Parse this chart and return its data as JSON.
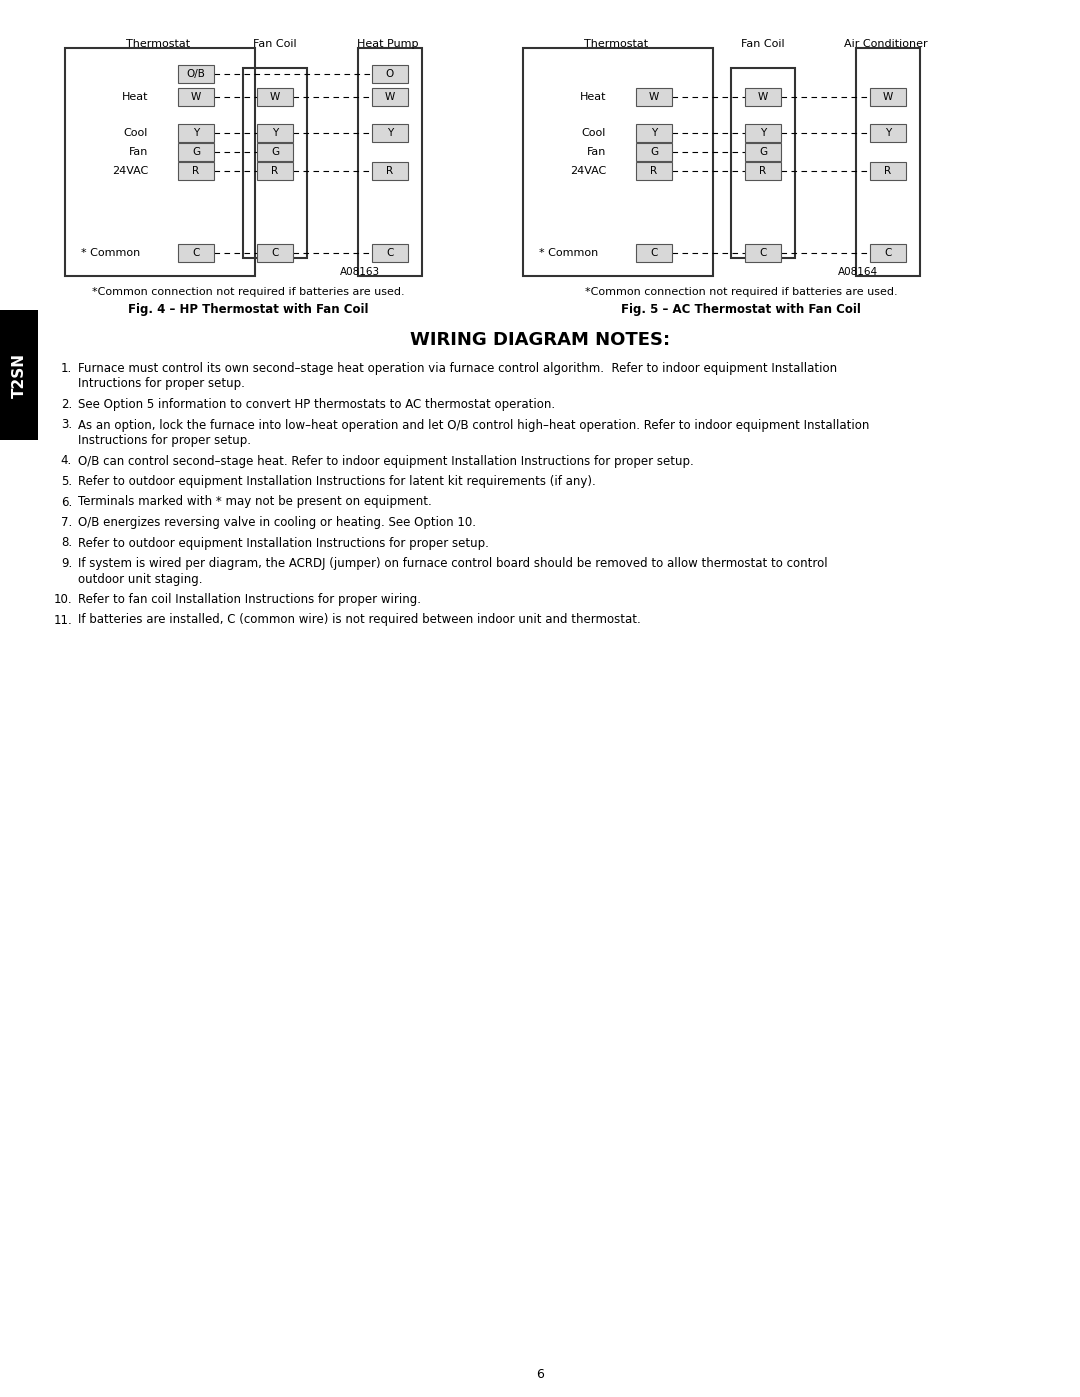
{
  "page_bg": "#ffffff",
  "fig4_title": "Thermostat",
  "fig4_fancoil_title": "Fan Coil",
  "fig4_heatpump_title": "Heat Pump",
  "fig4_caption_note": "*Common connection not required if batteries are used.",
  "fig4_caption_bold": "Fig. 4 – HP Thermostat with Fan Coil",
  "fig4_code": "A08163",
  "fig5_title": "Thermostat",
  "fig5_fancoil_title": "Fan Coil",
  "fig5_ac_title": "Air Conditioner",
  "fig5_caption_note": "*Common connection not required if batteries are used.",
  "fig5_caption_bold": "Fig. 5 – AC Thermostat with Fan Coil",
  "fig5_code": "A08164",
  "sidebar_text": "T2SN",
  "notes_title": "WIRING DIAGRAM NOTES:",
  "notes": [
    [
      "1.",
      "Furnace must control its own second–stage heat operation via furnace control algorithm.  Refer to indoor equipment Installation",
      "Intructions for proper setup."
    ],
    [
      "2.",
      "See Option 5 information to convert HP thermostats to AC thermostat operation."
    ],
    [
      "3.",
      "As an option, lock the furnace into low–heat operation and let O/B control high–heat operation. Refer to indoor equipment Installation",
      "Instructions for proper setup."
    ],
    [
      "4.",
      "O/B can control second–stage heat. Refer to indoor equipment Installation Instructions for proper setup."
    ],
    [
      "5.",
      "Refer to outdoor equipment Installation Instructions for latent kit requirements (if any)."
    ],
    [
      "6.",
      "Terminals marked with * may not be present on equipment."
    ],
    [
      "7.",
      "O/B energizes reversing valve in cooling or heating. See Option 10."
    ],
    [
      "8.",
      "Refer to outdoor equipment Installation Instructions for proper setup."
    ],
    [
      "9.",
      "If system is wired per diagram, the ACRDJ (jumper) on furnace control board should be removed to allow thermostat to control",
      "outdoor unit staging."
    ],
    [
      "10.",
      "Refer to fan coil Installation Instructions for proper wiring."
    ],
    [
      "11.",
      "If batteries are installed, C (common wire) is not required between indoor unit and thermostat."
    ]
  ],
  "page_number": "6"
}
